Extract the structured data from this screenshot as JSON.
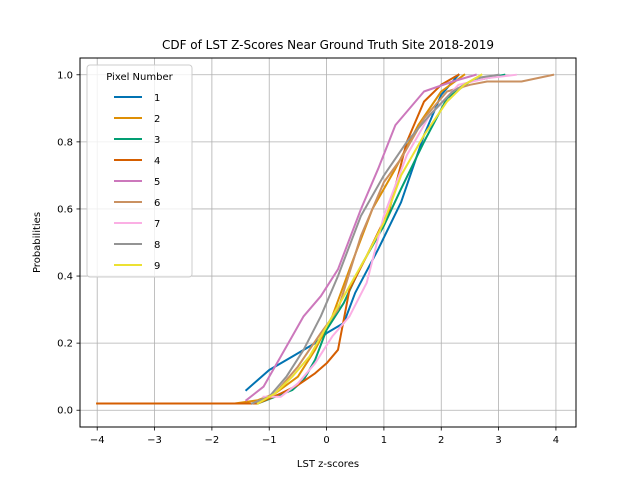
{
  "chart_data": {
    "type": "line",
    "title": "CDF of LST Z-Scores Near Ground Truth Site 2018-2019",
    "xlabel": "LST z-scores",
    "ylabel": "Probabilities",
    "xlim": [
      -4.3,
      4.35
    ],
    "ylim": [
      -0.05,
      1.05
    ],
    "xticks": [
      -4,
      -3,
      -2,
      -1,
      0,
      1,
      2,
      3,
      4
    ],
    "xtick_labels": [
      "−4",
      "−3",
      "−2",
      "−1",
      "0",
      "1",
      "2",
      "3",
      "4"
    ],
    "yticks": [
      0.0,
      0.2,
      0.4,
      0.6,
      0.8,
      1.0
    ],
    "ytick_labels": [
      "0.0",
      "0.2",
      "0.4",
      "0.6",
      "0.8",
      "1.0"
    ],
    "grid": true,
    "legend": {
      "title": "Pixel Number",
      "placement": "upper-left"
    },
    "series": [
      {
        "name": "1",
        "color": "#0173b2",
        "points": [
          [
            -1.4,
            0.06
          ],
          [
            -1.2,
            0.09
          ],
          [
            -1.0,
            0.12
          ],
          [
            -0.6,
            0.16
          ],
          [
            -0.2,
            0.2
          ],
          [
            0.0,
            0.23
          ],
          [
            0.3,
            0.26
          ],
          [
            0.5,
            0.35
          ],
          [
            0.9,
            0.48
          ],
          [
            1.3,
            0.62
          ],
          [
            1.7,
            0.82
          ],
          [
            2.0,
            0.94
          ],
          [
            2.3,
            1.0
          ]
        ]
      },
      {
        "name": "2",
        "color": "#de8f05",
        "points": [
          [
            -4.0,
            0.02
          ],
          [
            -1.6,
            0.02
          ],
          [
            -1.2,
            0.03
          ],
          [
            -0.9,
            0.05
          ],
          [
            -0.5,
            0.1
          ],
          [
            -0.2,
            0.18
          ],
          [
            0.1,
            0.28
          ],
          [
            0.4,
            0.42
          ],
          [
            0.8,
            0.6
          ],
          [
            1.2,
            0.72
          ],
          [
            1.6,
            0.85
          ],
          [
            2.0,
            0.95
          ],
          [
            2.4,
            1.0
          ]
        ]
      },
      {
        "name": "3",
        "color": "#029e73",
        "points": [
          [
            -1.2,
            0.02
          ],
          [
            -0.9,
            0.04
          ],
          [
            -0.6,
            0.06
          ],
          [
            -0.4,
            0.09
          ],
          [
            -0.2,
            0.15
          ],
          [
            0.0,
            0.24
          ],
          [
            0.3,
            0.32
          ],
          [
            0.6,
            0.43
          ],
          [
            1.0,
            0.55
          ],
          [
            1.3,
            0.66
          ],
          [
            1.7,
            0.8
          ],
          [
            2.1,
            0.93
          ],
          [
            2.5,
            0.98
          ],
          [
            3.1,
            1.0
          ]
        ]
      },
      {
        "name": "4",
        "color": "#d55e00",
        "points": [
          [
            -4.0,
            0.02
          ],
          [
            -1.2,
            0.02
          ],
          [
            -0.8,
            0.05
          ],
          [
            -0.5,
            0.075
          ],
          [
            -0.2,
            0.11
          ],
          [
            0.0,
            0.14
          ],
          [
            0.2,
            0.18
          ],
          [
            0.4,
            0.36
          ],
          [
            0.7,
            0.46
          ],
          [
            1.1,
            0.6
          ],
          [
            1.4,
            0.8
          ],
          [
            1.7,
            0.92
          ],
          [
            2.0,
            0.97
          ],
          [
            2.3,
            1.0
          ]
        ]
      },
      {
        "name": "5",
        "color": "#cc78bc",
        "points": [
          [
            -1.4,
            0.03
          ],
          [
            -1.1,
            0.07
          ],
          [
            -0.8,
            0.16
          ],
          [
            -0.4,
            0.28
          ],
          [
            -0.1,
            0.34
          ],
          [
            0.2,
            0.42
          ],
          [
            0.6,
            0.6
          ],
          [
            0.9,
            0.72
          ],
          [
            1.2,
            0.85
          ],
          [
            1.7,
            0.95
          ],
          [
            2.2,
            0.98
          ],
          [
            2.6,
            1.0
          ]
        ]
      },
      {
        "name": "6",
        "color": "#ca9161",
        "points": [
          [
            -1.3,
            0.02
          ],
          [
            -0.9,
            0.05
          ],
          [
            -0.5,
            0.13
          ],
          [
            -0.1,
            0.23
          ],
          [
            0.2,
            0.3
          ],
          [
            0.6,
            0.52
          ],
          [
            1.0,
            0.68
          ],
          [
            1.3,
            0.75
          ],
          [
            1.7,
            0.87
          ],
          [
            2.1,
            0.95
          ],
          [
            2.5,
            0.97
          ],
          [
            2.8,
            0.98
          ],
          [
            3.4,
            0.98
          ],
          [
            3.95,
            1.0
          ]
        ]
      },
      {
        "name": "7",
        "color": "#fbafe4",
        "points": [
          [
            -1.1,
            0.04
          ],
          [
            -0.8,
            0.04
          ],
          [
            -0.5,
            0.08
          ],
          [
            -0.2,
            0.14
          ],
          [
            0.1,
            0.22
          ],
          [
            0.4,
            0.28
          ],
          [
            0.7,
            0.38
          ],
          [
            1.0,
            0.58
          ],
          [
            1.4,
            0.76
          ],
          [
            1.8,
            0.88
          ],
          [
            2.3,
            0.97
          ],
          [
            2.8,
            0.99
          ],
          [
            3.3,
            1.0
          ]
        ]
      },
      {
        "name": "8",
        "color": "#949494",
        "points": [
          [
            -1.3,
            0.02
          ],
          [
            -1.0,
            0.04
          ],
          [
            -0.7,
            0.1
          ],
          [
            -0.4,
            0.18
          ],
          [
            -0.1,
            0.28
          ],
          [
            0.2,
            0.4
          ],
          [
            0.6,
            0.58
          ],
          [
            1.0,
            0.7
          ],
          [
            1.4,
            0.8
          ],
          [
            1.8,
            0.88
          ],
          [
            2.2,
            0.95
          ],
          [
            2.6,
            0.99
          ],
          [
            3.0,
            1.0
          ]
        ]
      },
      {
        "name": "9",
        "color": "#ece133",
        "points": [
          [
            -1.2,
            0.02
          ],
          [
            -0.9,
            0.05
          ],
          [
            -0.6,
            0.1
          ],
          [
            -0.3,
            0.16
          ],
          [
            0.0,
            0.25
          ],
          [
            0.3,
            0.34
          ],
          [
            0.7,
            0.46
          ],
          [
            1.0,
            0.56
          ],
          [
            1.3,
            0.7
          ],
          [
            1.7,
            0.82
          ],
          [
            2.1,
            0.92
          ],
          [
            2.4,
            0.97
          ],
          [
            2.7,
            1.0
          ]
        ]
      }
    ]
  }
}
